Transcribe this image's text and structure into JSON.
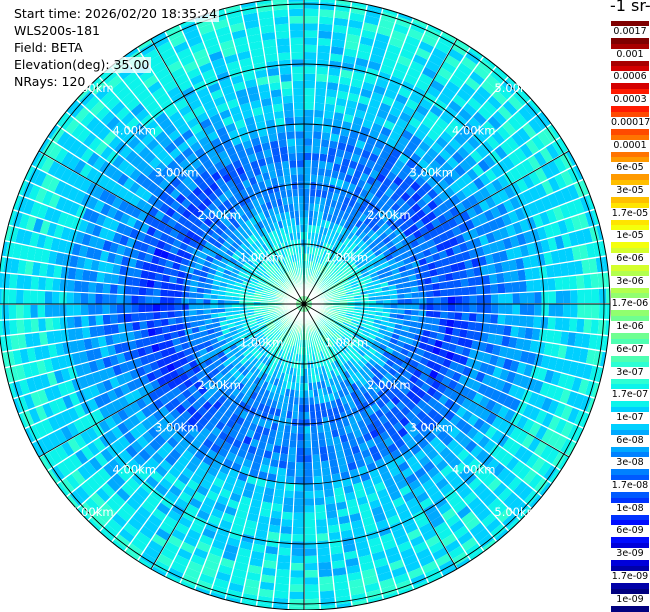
{
  "info": {
    "start_time": "Start time: 2026/02/20 18:35:24",
    "instrument": "WLS200s-181",
    "field": "Field: BETA",
    "elevation": "Elevation(deg): 35.00",
    "nrays": "NRays: 120"
  },
  "chart_data": {
    "type": "heatmap",
    "projection": "polar-ppi",
    "n_rays": 120,
    "range_rings_km": [
      1,
      2,
      3,
      4,
      5
    ],
    "range_ring_labels": [
      "1.00km",
      "2.00km",
      "3.00km",
      "4.00km",
      "5.00km"
    ],
    "radial_spokes_deg": [
      0,
      30,
      60,
      90,
      120,
      150,
      180,
      210,
      240,
      270,
      300,
      330
    ],
    "max_range_km": 5.1,
    "radial_profile": [
      {
        "r_km": 0.0,
        "level_index": 12
      },
      {
        "r_km": 0.6,
        "level_index": 10
      },
      {
        "r_km": 1.2,
        "level_index": 8
      },
      {
        "r_km": 1.8,
        "level_index": 6
      },
      {
        "r_km": 2.5,
        "level_index": 5
      },
      {
        "r_km": 3.2,
        "level_index": 7
      },
      {
        "r_km": 4.0,
        "level_index": 8
      },
      {
        "r_km": 4.8,
        "level_index": 9
      }
    ]
  },
  "colorbar": {
    "unit_fragment": "-1 sr-",
    "levels": [
      "0.0017",
      "0.001",
      "0.0006",
      "0.0003",
      "0.00017",
      "0.0001",
      "6e-05",
      "3e-05",
      "1.7e-05",
      "1e-05",
      "6e-06",
      "3e-06",
      "1.7e-06",
      "1e-06",
      "6e-07",
      "3e-07",
      "1.7e-07",
      "1e-07",
      "6e-08",
      "3e-08",
      "1.7e-08",
      "1e-08",
      "6e-09",
      "3e-09",
      "1.7e-09",
      "1e-09"
    ],
    "colors": [
      "#7f0000",
      "#a80000",
      "#d40000",
      "#ff1a00",
      "#ff4a00",
      "#ff7400",
      "#ff9a00",
      "#ffbf00",
      "#ffe400",
      "#f4ff0c",
      "#d4ff2d",
      "#b2ff4e",
      "#91ff6f",
      "#6fff91",
      "#4effb2",
      "#2dffd4",
      "#0cf4eb",
      "#00d0ff",
      "#00a9ff",
      "#0081ff",
      "#005aff",
      "#0033ff",
      "#000cff",
      "#0000da",
      "#0000a8",
      "#00007f"
    ]
  }
}
